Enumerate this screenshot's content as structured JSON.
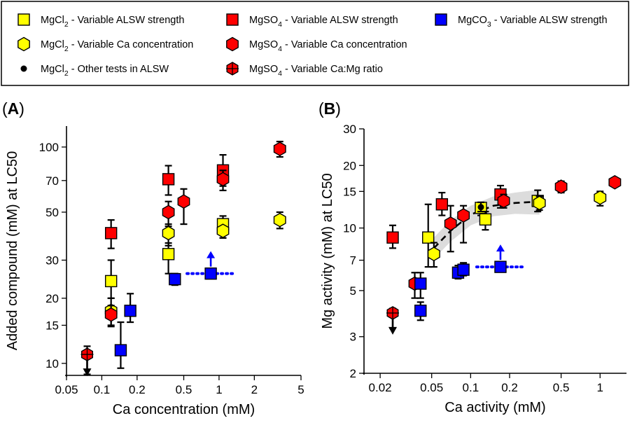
{
  "legend": {
    "items": [
      {
        "formula": "MgCl",
        "sub": "2",
        "desc": " - Variable ALSW strength",
        "marker": "square",
        "color": "#FFFF00"
      },
      {
        "formula": "MgCl",
        "sub": "2",
        "desc": " - Variable Ca concentration",
        "marker": "hexagon",
        "color": "#FFFF00"
      },
      {
        "formula": "MgCl",
        "sub": "2",
        "desc": " - Other tests in ALSW",
        "marker": "dot",
        "color": "#000000"
      },
      {
        "formula": "MgSO",
        "sub": "4",
        "desc": " - Variable ALSW strength",
        "marker": "square",
        "color": "#FF0000"
      },
      {
        "formula": "MgSO",
        "sub": "4",
        "desc": " - Variable Ca concentration",
        "marker": "hexagon",
        "color": "#FF0000"
      },
      {
        "formula": "MgSO",
        "sub": "4",
        "desc": " - Variable Ca:Mg ratio",
        "marker": "crosshex",
        "color": "#FF0000"
      },
      {
        "formula": "MgCO",
        "sub": "3",
        "desc": " - Variable ALSW strength",
        "marker": "square",
        "color": "#0000FF"
      }
    ]
  },
  "chart_data": [
    {
      "type": "scatter",
      "panel_label": "A",
      "xlabel": "Ca concentration (mM)",
      "ylabel": "Added compound (mM) at LC50",
      "x_scale": "log",
      "y_scale": "log",
      "xlim": [
        0.05,
        5
      ],
      "ylim": [
        8.8,
        125
      ],
      "x_ticks": [
        0.05,
        0.1,
        0.2,
        0.5,
        1,
        2,
        5
      ],
      "x_tick_labels": [
        "0.05",
        "0.1",
        "0.2",
        "0.5",
        "1",
        "2",
        "5"
      ],
      "y_ticks": [
        10,
        15,
        20,
        30,
        50,
        70,
        100
      ],
      "y_tick_labels": [
        "10",
        "15",
        "20",
        "30",
        "50",
        "70",
        "100"
      ],
      "points": [
        {
          "x": 0.12,
          "y": 40,
          "lo": 34,
          "hi": 46,
          "marker": "square",
          "color": "#FF0000"
        },
        {
          "x": 0.12,
          "y": 24,
          "lo": 20,
          "hi": 30,
          "marker": "square",
          "color": "#FFFF00"
        },
        {
          "x": 0.12,
          "y": 17.5,
          "lo": 15,
          "hi": 20,
          "marker": "hexagon",
          "color": "#FFFF00"
        },
        {
          "x": 0.12,
          "y": 16.8,
          "lo": 14.8,
          "hi": 18.5,
          "marker": "hexagon",
          "color": "#FF0000"
        },
        {
          "x": 0.145,
          "y": 11.5,
          "lo": 9.5,
          "hi": 15.5,
          "marker": "square",
          "color": "#0000FF"
        },
        {
          "x": 0.175,
          "y": 17.5,
          "lo": 15.5,
          "hi": 21,
          "marker": "square",
          "color": "#0000FF"
        },
        {
          "x": 0.075,
          "y": 11,
          "lo": 8.9,
          "hi": 12,
          "marker": "crosshex",
          "color": "#FF0000",
          "arrow": "down"
        },
        {
          "x": 0.37,
          "y": 71,
          "lo": 60,
          "hi": 82,
          "marker": "square",
          "color": "#FF0000"
        },
        {
          "x": 0.37,
          "y": 50,
          "lo": 43,
          "hi": 56,
          "marker": "hexagon",
          "color": "#FF0000"
        },
        {
          "x": 0.37,
          "y": 40,
          "lo": 35,
          "hi": 44,
          "marker": "hexagon",
          "color": "#FFFF00"
        },
        {
          "x": 0.37,
          "y": 32,
          "lo": 26,
          "hi": 36,
          "marker": "square",
          "color": "#FFFF00"
        },
        {
          "x": 0.42,
          "y": 24.5,
          "lo": 23,
          "hi": 26,
          "marker": "square",
          "color": "#0000FF"
        },
        {
          "x": 0.5,
          "y": 56,
          "lo": 44,
          "hi": 64,
          "marker": "hexagon",
          "color": "#FF0000"
        },
        {
          "x": 0.85,
          "y": 26,
          "lo": 26,
          "hi": 26,
          "marker": "square",
          "color": "#0000FF",
          "arrow": "up",
          "h_dotted": true
        },
        {
          "x": 1.08,
          "y": 78,
          "lo": 66,
          "hi": 92,
          "marker": "square",
          "color": "#FF0000"
        },
        {
          "x": 1.08,
          "y": 71,
          "lo": 63,
          "hi": 78,
          "marker": "hexagon",
          "color": "#FF0000"
        },
        {
          "x": 1.08,
          "y": 44,
          "lo": 38,
          "hi": 48,
          "marker": "square",
          "color": "#FFFF00"
        },
        {
          "x": 1.08,
          "y": 41,
          "lo": 38,
          "hi": 43,
          "marker": "hexagon",
          "color": "#FFFF00"
        },
        {
          "x": 3.3,
          "y": 98,
          "lo": 90,
          "hi": 106,
          "marker": "hexagon",
          "color": "#FF0000"
        },
        {
          "x": 3.3,
          "y": 46,
          "lo": 42,
          "hi": 50,
          "marker": "hexagon",
          "color": "#FFFF00"
        }
      ]
    },
    {
      "type": "scatter",
      "panel_label": "B",
      "xlabel": "Ca activity (mM)",
      "ylabel": "Mg activity (mM) at LC50",
      "x_scale": "log",
      "y_scale": "log",
      "xlim": [
        0.015,
        1.6
      ],
      "ylim": [
        2,
        30
      ],
      "x_ticks": [
        0.02,
        0.05,
        0.1,
        0.2,
        0.5,
        1
      ],
      "x_tick_labels": [
        "0.02",
        "0.05",
        "0.1",
        "0.2",
        "0.5",
        "1"
      ],
      "y_ticks": [
        2,
        3,
        5,
        7,
        10,
        15,
        20,
        30
      ],
      "y_tick_labels": [
        "2",
        "3",
        "5",
        "7",
        "10",
        "15",
        "20",
        "30"
      ],
      "fit": {
        "line": [
          [
            0.052,
            8.0
          ],
          [
            0.07,
            9.7
          ],
          [
            0.1,
            11.6
          ],
          [
            0.15,
            12.8
          ],
          [
            0.22,
            13.2
          ],
          [
            0.34,
            13.4
          ]
        ],
        "band_upper": [
          [
            0.052,
            9.0
          ],
          [
            0.07,
            10.9
          ],
          [
            0.1,
            12.8
          ],
          [
            0.15,
            14.2
          ],
          [
            0.22,
            14.8
          ],
          [
            0.34,
            15.3
          ]
        ],
        "band_lower": [
          [
            0.052,
            7.1
          ],
          [
            0.07,
            8.6
          ],
          [
            0.1,
            10.3
          ],
          [
            0.15,
            11.4
          ],
          [
            0.22,
            11.7
          ],
          [
            0.34,
            11.6
          ]
        ]
      },
      "points": [
        {
          "x": 0.025,
          "y": 9.0,
          "lo": 8.0,
          "hi": 10.3,
          "marker": "square",
          "color": "#FF0000"
        },
        {
          "x": 0.025,
          "y": 3.9,
          "lo": 3.3,
          "hi": 4.1,
          "marker": "crosshex",
          "color": "#FF0000",
          "arrow": "down"
        },
        {
          "x": 0.037,
          "y": 5.4,
          "lo": 4.6,
          "hi": 6.1,
          "marker": "hexagon",
          "color": "#FF0000"
        },
        {
          "x": 0.041,
          "y": 5.4,
          "lo": 4.6,
          "hi": 6.1,
          "marker": "square",
          "color": "#0000FF"
        },
        {
          "x": 0.041,
          "y": 4.0,
          "lo": 3.6,
          "hi": 4.4,
          "marker": "square",
          "color": "#0000FF"
        },
        {
          "x": 0.047,
          "y": 9.0,
          "lo": 6.5,
          "hi": 13,
          "marker": "square",
          "color": "#FFFF00"
        },
        {
          "x": 0.052,
          "y": 7.5,
          "lo": 6.5,
          "hi": 8.5,
          "marker": "hexagon",
          "color": "#FFFF00"
        },
        {
          "x": 0.06,
          "y": 13.0,
          "lo": 11.5,
          "hi": 14.8,
          "marker": "square",
          "color": "#FF0000"
        },
        {
          "x": 0.07,
          "y": 10.5,
          "lo": 7.7,
          "hi": 12.8,
          "marker": "hexagon",
          "color": "#FF0000"
        },
        {
          "x": 0.08,
          "y": 6.1,
          "lo": 5.7,
          "hi": 6.6,
          "marker": "square",
          "color": "#0000FF"
        },
        {
          "x": 0.088,
          "y": 11.5,
          "lo": 8.5,
          "hi": 12.8,
          "marker": "hexagon",
          "color": "#FF0000"
        },
        {
          "x": 0.088,
          "y": 6.3,
          "lo": 5.9,
          "hi": 6.8,
          "marker": "square",
          "color": "#0000FF"
        },
        {
          "x": 0.12,
          "y": 12.5,
          "lo": 11.5,
          "hi": 13.2,
          "marker": "square",
          "color": "#FFFF00"
        },
        {
          "x": 0.12,
          "y": 12.6,
          "lo": 12,
          "hi": 13.3,
          "marker": "dot",
          "color": "#000000"
        },
        {
          "x": 0.13,
          "y": 11,
          "lo": 9.8,
          "hi": 12,
          "marker": "square",
          "color": "#FFFF00"
        },
        {
          "x": 0.17,
          "y": 14.5,
          "lo": 12.5,
          "hi": 16,
          "marker": "square",
          "color": "#FF0000"
        },
        {
          "x": 0.17,
          "y": 6.5,
          "lo": 6.5,
          "hi": 6.5,
          "marker": "square",
          "color": "#0000FF",
          "arrow": "up",
          "h_dotted": true
        },
        {
          "x": 0.18,
          "y": 13.5,
          "lo": 12.5,
          "hi": 14.5,
          "marker": "hexagon",
          "color": "#FF0000"
        },
        {
          "x": 0.33,
          "y": 13.5,
          "lo": 12,
          "hi": 15.2,
          "marker": "square",
          "color": "#FFFF00"
        },
        {
          "x": 0.34,
          "y": 13.2,
          "lo": 12.2,
          "hi": 14.2,
          "marker": "hexagon",
          "color": "#FFFF00"
        },
        {
          "x": 0.5,
          "y": 15.8,
          "lo": 14.8,
          "hi": 16.8,
          "marker": "hexagon",
          "color": "#FF0000"
        },
        {
          "x": 1.0,
          "y": 14.0,
          "lo": 12.8,
          "hi": 15,
          "marker": "hexagon",
          "color": "#FFFF00"
        },
        {
          "x": 1.3,
          "y": 16.6,
          "lo": 16,
          "hi": 17.2,
          "marker": "hexagon",
          "color": "#FF0000"
        }
      ]
    }
  ]
}
